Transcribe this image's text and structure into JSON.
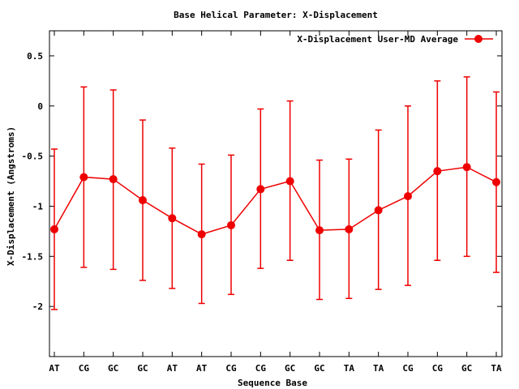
{
  "chart_data": {
    "type": "line",
    "title": "Base  Helical Parameter: X-Displacement",
    "xlabel": "Sequence Base",
    "ylabel": "X-Displacement (Angstroms)",
    "ylim": [
      -2.5,
      0.75
    ],
    "yticks": [
      0.5,
      0,
      -0.5,
      -1,
      -1.5,
      -2
    ],
    "ytick_labels": [
      "0.5",
      "0",
      "-0.5",
      "-1",
      "-1.5",
      "-2"
    ],
    "grid": false,
    "legend_position": "top-right",
    "categories": [
      "AT",
      "CG",
      "GC",
      "GC",
      "AT",
      "AT",
      "CG",
      "CG",
      "GC",
      "GC",
      "TA",
      "TA",
      "CG",
      "CG",
      "GC",
      "TA"
    ],
    "series": [
      {
        "name": "X-Displacement User-MD Average",
        "color": "#ee0000",
        "values": [
          -1.23,
          -0.71,
          -0.73,
          -0.94,
          -1.12,
          -1.28,
          -1.19,
          -0.83,
          -0.75,
          -1.24,
          -1.23,
          -1.04,
          -0.9,
          -0.65,
          -0.61,
          -0.76
        ],
        "error_low": [
          -2.03,
          -1.61,
          -1.63,
          -1.74,
          -1.82,
          -1.97,
          -1.88,
          -1.62,
          -1.54,
          -1.93,
          -1.92,
          -1.83,
          -1.79,
          -1.54,
          -1.5,
          -1.66
        ],
        "error_high": [
          -0.43,
          0.19,
          0.16,
          -0.14,
          -0.42,
          -0.58,
          -0.49,
          -0.03,
          0.05,
          -0.54,
          -0.53,
          -0.24,
          0.0,
          0.25,
          0.29,
          0.14
        ]
      }
    ]
  }
}
